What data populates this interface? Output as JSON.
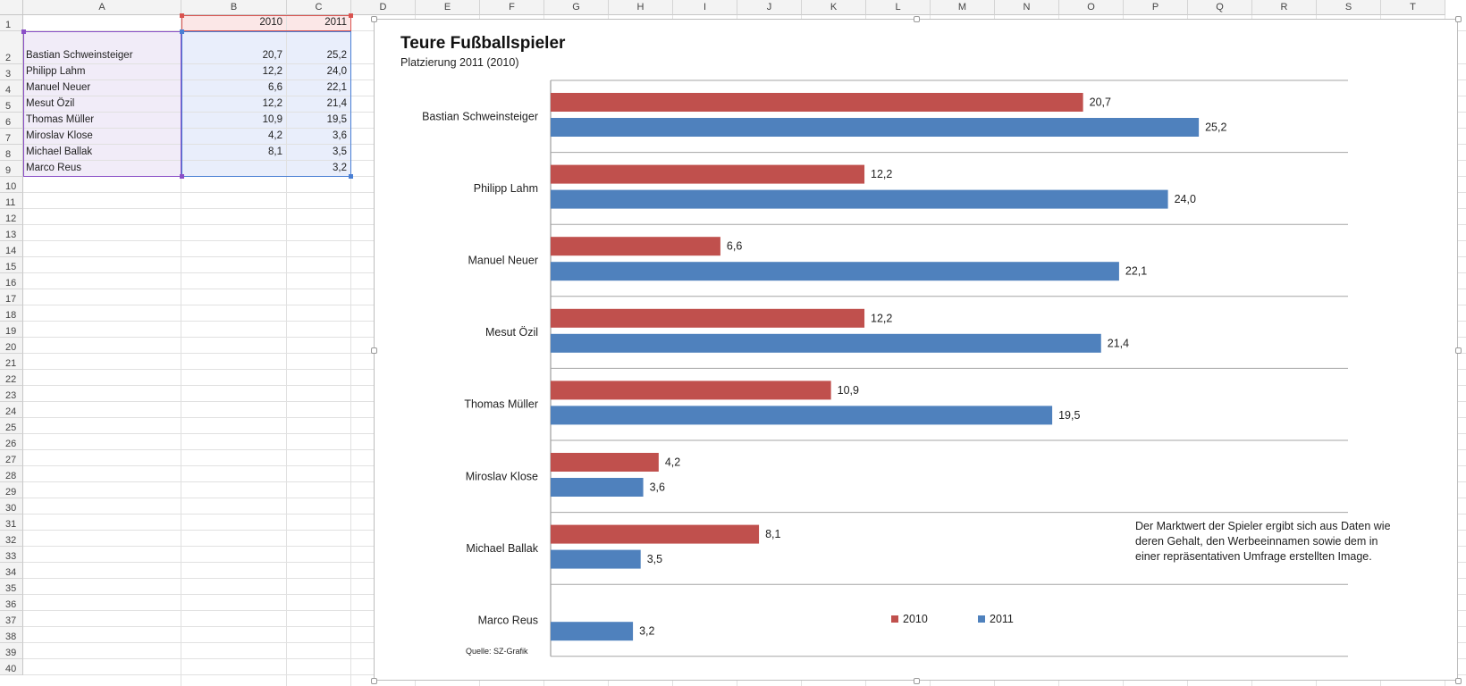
{
  "sheet": {
    "columns": [
      "A",
      "B",
      "C",
      "D",
      "E",
      "F",
      "G",
      "H",
      "I",
      "J",
      "K",
      "L",
      "M",
      "N",
      "O",
      "P",
      "Q",
      "R",
      "S",
      "T"
    ],
    "row_numbers": [
      "1",
      "2",
      "3",
      "4",
      "5",
      "6",
      "7",
      "8",
      "9",
      "10",
      "11",
      "12",
      "13",
      "14",
      "15",
      "16",
      "17",
      "18",
      "19",
      "20",
      "21",
      "22",
      "23",
      "24",
      "25",
      "26",
      "27",
      "28",
      "29",
      "30",
      "31",
      "32",
      "33",
      "34",
      "35",
      "36",
      "37",
      "38",
      "39",
      "40"
    ],
    "header_row": {
      "b": "2010",
      "c": "2011"
    },
    "rows": [
      {
        "name": "Bastian Schweinsteiger",
        "b": "20,7",
        "c": "25,2"
      },
      {
        "name": "Philipp Lahm",
        "b": "12,2",
        "c": "24,0"
      },
      {
        "name": "Manuel Neuer",
        "b": "6,6",
        "c": "22,1"
      },
      {
        "name": "Mesut Özil",
        "b": "12,2",
        "c": "21,4"
      },
      {
        "name": "Thomas Müller",
        "b": "10,9",
        "c": "19,5"
      },
      {
        "name": "Miroslav Klose",
        "b": "4,2",
        "c": "3,6"
      },
      {
        "name": "Michael Ballak",
        "b": "8,1",
        "c": "3,5"
      },
      {
        "name": "Marco Reus",
        "b": "",
        "c": "3,2"
      }
    ]
  },
  "chart": {
    "note": "Der Marktwert der Spieler ergibt sich aus Daten wie deren Gehalt, den Werbeeinnamen sowie dem in einer repräsentativen Umfrage erstellten Image.",
    "source": "Quelle: SZ-Grafik"
  },
  "chart_data": {
    "type": "bar",
    "orientation": "horizontal",
    "title": "Teure Fußballspieler",
    "subtitle": "Platzierung 2011 (2010)",
    "categories": [
      "Bastian Schweinsteiger",
      "Philipp Lahm",
      "Manuel Neuer",
      "Mesut Özil",
      "Thomas Müller",
      "Miroslav Klose",
      "Michael Ballak",
      "Marco Reus"
    ],
    "series": [
      {
        "name": "2010",
        "color": "#c0504d",
        "values": [
          20.7,
          12.2,
          6.6,
          12.2,
          10.9,
          4.2,
          8.1,
          null
        ],
        "labels": [
          "20,7",
          "12,2",
          "6,6",
          "12,2",
          "10,9",
          "4,2",
          "8,1",
          ""
        ]
      },
      {
        "name": "2011",
        "color": "#4f81bd",
        "values": [
          25.2,
          24.0,
          22.1,
          21.4,
          19.5,
          3.6,
          3.5,
          3.2
        ],
        "labels": [
          "25,2",
          "24,0",
          "22,1",
          "21,4",
          "19,5",
          "3,6",
          "3,5",
          "3,2"
        ]
      }
    ],
    "xlim": [
      0,
      31
    ],
    "grid": "horizontal category separators",
    "legend": "bottom-center"
  }
}
